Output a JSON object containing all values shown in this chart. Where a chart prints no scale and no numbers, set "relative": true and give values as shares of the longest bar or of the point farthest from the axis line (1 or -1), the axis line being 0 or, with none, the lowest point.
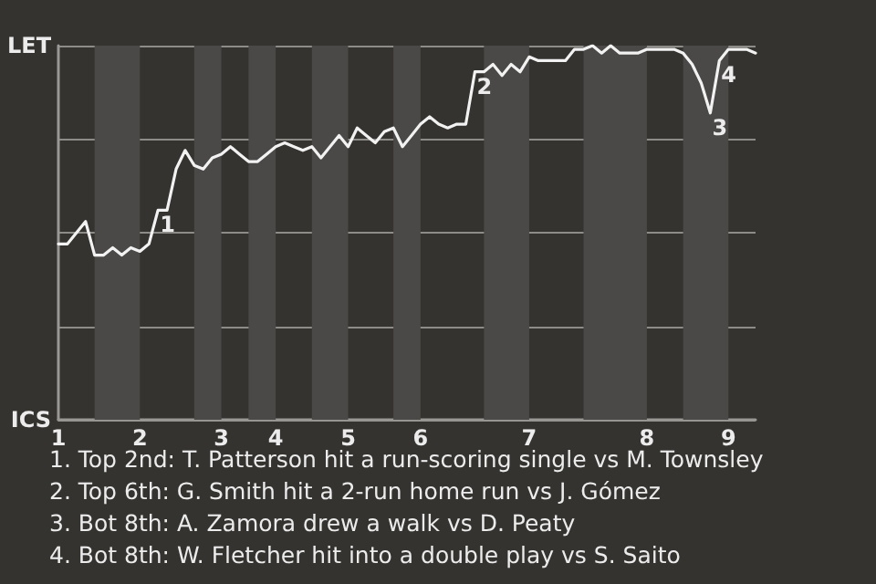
{
  "chart_data": {
    "type": "line",
    "categories": [
      "1",
      null,
      null,
      null,
      null,
      null,
      null,
      null,
      null,
      "2",
      null,
      null,
      null,
      null,
      null,
      null,
      null,
      null,
      "3",
      null,
      null,
      null,
      null,
      null,
      "4",
      null,
      null,
      null,
      null,
      null,
      null,
      null,
      "5",
      null,
      null,
      null,
      null,
      null,
      null,
      null,
      "6",
      null,
      null,
      null,
      null,
      null,
      null,
      null,
      null,
      null,
      null,
      null,
      "7",
      null,
      null,
      null,
      null,
      null,
      null,
      null,
      null,
      null,
      null,
      null,
      null,
      "8",
      null,
      null,
      null,
      null,
      null,
      null,
      null,
      null,
      "9",
      null,
      null,
      null
    ],
    "relative": true,
    "series": [
      {
        "color": "#f2f2f2",
        "values": [
          0.47,
          0.47,
          0.5,
          0.53,
          0.44,
          0.44,
          0.46,
          0.44,
          0.46,
          0.45,
          0.47,
          0.56,
          0.56,
          0.67,
          0.72,
          0.68,
          0.67,
          0.7,
          0.71,
          0.73,
          0.71,
          0.69,
          0.69,
          0.71,
          0.73,
          0.74,
          0.73,
          0.72,
          0.73,
          0.7,
          0.73,
          0.76,
          0.73,
          0.78,
          0.76,
          0.74,
          0.77,
          0.78,
          0.73,
          0.76,
          0.79,
          0.81,
          0.79,
          0.78,
          0.79,
          0.79,
          0.93,
          0.93,
          0.95,
          0.92,
          0.95,
          0.93,
          0.97,
          0.96,
          0.96,
          0.96,
          0.96,
          0.99,
          0.99,
          1,
          0.98,
          1,
          0.98,
          0.98,
          0.98,
          0.99,
          0.99,
          0.99,
          0.99,
          0.98,
          0.95,
          0.9,
          0.82,
          0.96,
          0.99,
          0.99,
          0.99,
          0.98
        ]
      }
    ],
    "grid": "y",
    "marker": "none",
    "line_style": "solid",
    "annotations": [
      "LET",
      "ICS",
      {
        "text": "1",
        "y": 0.56
      },
      {
        "text": "2",
        "y": 0.93
      },
      {
        "text": "3",
        "y": 0.82
      },
      {
        "text": "4",
        "y": 0.96
      },
      "1. Top 2nd: T. Patterson hit a run-scoring single vs M. Townsley",
      "2. Top 6th: G. Smith hit a 2-run home run vs J. Gómez",
      "3. Bot 8th: A. Zamora drew a walk vs D. Peaty",
      "4. Bot 8th: W. Fletcher hit into a double play vs S. Saito"
    ]
  }
}
